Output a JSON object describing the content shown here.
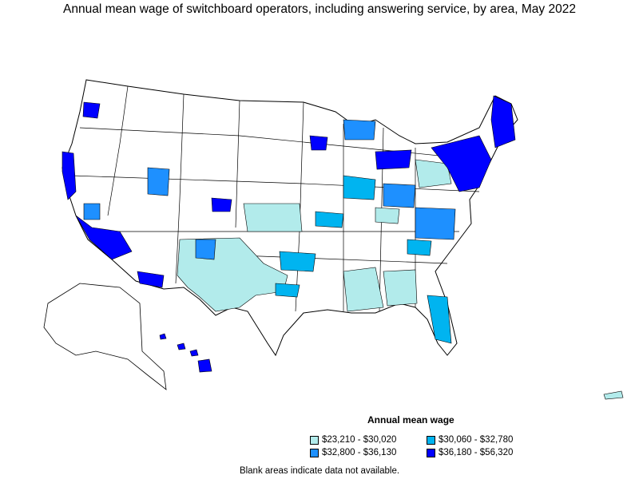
{
  "title": "Annual mean wage of switchboard operators, including answering service, by area, May 2022",
  "legend": {
    "title": "Annual mean wage",
    "items": [
      {
        "label": "$23,210 - $30,020",
        "color": "#b2ebeb"
      },
      {
        "label": "$30,060 - $32,780",
        "color": "#00b4f0"
      },
      {
        "label": "$32,800 - $36,130",
        "color": "#1e90ff"
      },
      {
        "label": "$36,180 - $56,320",
        "color": "#0000ff"
      }
    ]
  },
  "note": "Blank areas indicate data not available.",
  "colors": {
    "blank": "#ffffff",
    "border": "#000000"
  }
}
